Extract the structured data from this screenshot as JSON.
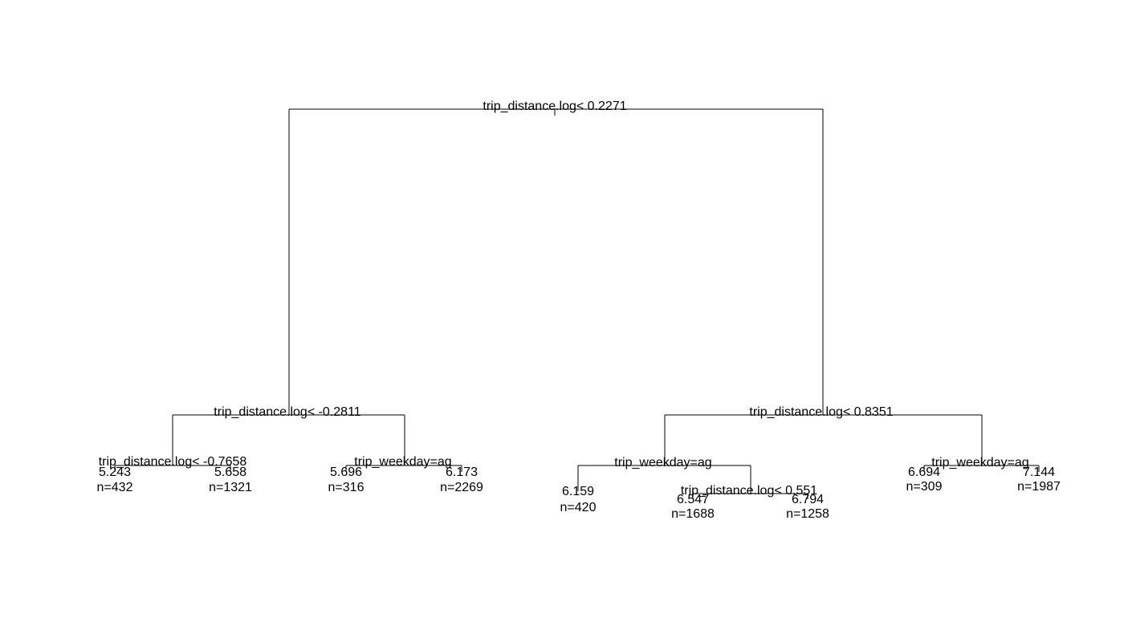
{
  "tree": {
    "splits": {
      "root": "trip_distance.log< 0.2271",
      "left": "trip_distance.log< -0.2811",
      "right": "trip_distance.log< 0.8351",
      "left_left": "trip_distance.log< -0.7658",
      "left_right": "trip_weekday=ag",
      "right_left": "trip_weekday=ag",
      "right_left_right": "trip_distance.log< 0.551",
      "right_right": "trip_weekday=ag"
    },
    "leaves": [
      {
        "value": "5.243",
        "n": "n=432"
      },
      {
        "value": "5.658",
        "n": "n=1321"
      },
      {
        "value": "5.696",
        "n": "n=316"
      },
      {
        "value": "6.173",
        "n": "n=2269"
      },
      {
        "value": "6.159",
        "n": "n=420"
      },
      {
        "value": "6.547",
        "n": "n=1688"
      },
      {
        "value": "6.794",
        "n": "n=1258"
      },
      {
        "value": "6.694",
        "n": "n=309"
      },
      {
        "value": "7.144",
        "n": "n=1987"
      }
    ]
  }
}
